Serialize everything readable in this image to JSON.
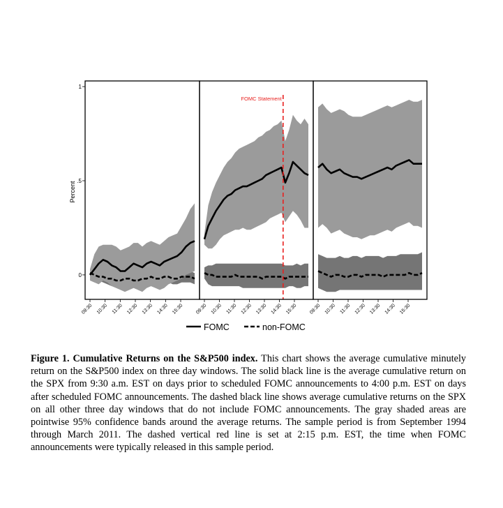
{
  "chart_data": {
    "type": "line",
    "ylabel": "Percent",
    "yticks": [
      {
        "value": 0,
        "label": "0"
      },
      {
        "value": 0.5,
        "label": ".5"
      },
      {
        "value": 1,
        "label": "1"
      }
    ],
    "ylim": [
      -0.13,
      1.03
    ],
    "panels": [
      {
        "xticks": [
          "09:30",
          "10:30",
          "11:30",
          "12:30",
          "13:30",
          "14:30",
          "15:30"
        ],
        "series": [
          {
            "name": "FOMC",
            "style": "solid",
            "values": [
              0.0,
              0.03,
              0.06,
              0.08,
              0.07,
              0.05,
              0.04,
              0.02,
              0.02,
              0.04,
              0.06,
              0.05,
              0.04,
              0.06,
              0.07,
              0.06,
              0.05,
              0.07,
              0.08,
              0.09,
              0.1,
              0.12,
              0.15,
              0.17,
              0.18
            ],
            "upper": [
              0.03,
              0.11,
              0.15,
              0.16,
              0.16,
              0.16,
              0.15,
              0.13,
              0.14,
              0.15,
              0.17,
              0.17,
              0.15,
              0.17,
              0.18,
              0.17,
              0.16,
              0.18,
              0.2,
              0.21,
              0.22,
              0.26,
              0.3,
              0.35,
              0.38
            ],
            "lower": [
              -0.03,
              -0.04,
              -0.05,
              -0.03,
              -0.04,
              -0.06,
              -0.07,
              -0.08,
              -0.09,
              -0.08,
              -0.07,
              -0.08,
              -0.09,
              -0.07,
              -0.06,
              -0.07,
              -0.08,
              -0.07,
              -0.05,
              -0.04,
              -0.03,
              -0.02,
              0.0,
              0.01,
              0.02
            ]
          },
          {
            "name": "non-FOMC",
            "style": "dashed",
            "values": [
              0.01,
              0.0,
              -0.01,
              -0.01,
              -0.02,
              -0.02,
              -0.03,
              -0.03,
              -0.02,
              -0.02,
              -0.03,
              -0.03,
              -0.02,
              -0.02,
              -0.01,
              -0.02,
              -0.02,
              -0.01,
              -0.01,
              -0.02,
              -0.02,
              -0.01,
              -0.01,
              -0.01,
              -0.02
            ],
            "upper": [
              0.03,
              0.02,
              0.01,
              0.01,
              0.0,
              -0.01,
              -0.01,
              -0.01,
              0.0,
              0.01,
              0.0,
              0.0,
              0.01,
              0.01,
              0.02,
              0.01,
              0.01,
              0.02,
              0.02,
              0.01,
              0.01,
              0.02,
              0.02,
              0.02,
              0.01
            ],
            "lower": [
              -0.01,
              -0.02,
              -0.03,
              -0.04,
              -0.05,
              -0.06,
              -0.06,
              -0.06,
              -0.06,
              -0.05,
              -0.06,
              -0.06,
              -0.05,
              -0.05,
              -0.04,
              -0.05,
              -0.05,
              -0.04,
              -0.04,
              -0.05,
              -0.05,
              -0.04,
              -0.04,
              -0.04,
              -0.05
            ]
          }
        ]
      },
      {
        "xticks": [
          "09:30",
          "10:30",
          "11:30",
          "12:30",
          "13:30",
          "14:30",
          "15:30"
        ],
        "event": {
          "x_fraction": 0.735,
          "label": "FOMC Statement"
        },
        "series": [
          {
            "name": "FOMC",
            "style": "solid",
            "values": [
              0.19,
              0.26,
              0.3,
              0.34,
              0.37,
              0.4,
              0.42,
              0.43,
              0.45,
              0.46,
              0.47,
              0.47,
              0.48,
              0.49,
              0.5,
              0.51,
              0.53,
              0.54,
              0.55,
              0.56,
              0.57,
              0.49,
              0.54,
              0.6,
              0.58,
              0.56,
              0.54,
              0.53
            ],
            "upper": [
              0.22,
              0.37,
              0.44,
              0.49,
              0.53,
              0.57,
              0.6,
              0.62,
              0.65,
              0.67,
              0.68,
              0.69,
              0.7,
              0.71,
              0.73,
              0.74,
              0.76,
              0.77,
              0.79,
              0.8,
              0.82,
              0.71,
              0.77,
              0.85,
              0.82,
              0.8,
              0.83,
              0.8
            ],
            "lower": [
              0.16,
              0.14,
              0.14,
              0.16,
              0.19,
              0.21,
              0.22,
              0.23,
              0.24,
              0.24,
              0.25,
              0.24,
              0.24,
              0.25,
              0.26,
              0.27,
              0.28,
              0.3,
              0.31,
              0.32,
              0.33,
              0.28,
              0.31,
              0.34,
              0.32,
              0.29,
              0.25,
              0.25
            ]
          },
          {
            "name": "non-FOMC",
            "style": "dashed",
            "values": [
              0.01,
              0.0,
              0.0,
              -0.01,
              -0.01,
              -0.01,
              -0.01,
              -0.01,
              0.0,
              -0.01,
              -0.01,
              -0.01,
              -0.01,
              -0.01,
              -0.01,
              -0.02,
              -0.01,
              -0.01,
              -0.01,
              -0.01,
              -0.01,
              -0.02,
              -0.01,
              -0.01,
              -0.01,
              -0.01,
              -0.01,
              -0.01
            ],
            "upper": [
              0.04,
              0.05,
              0.05,
              0.06,
              0.06,
              0.06,
              0.06,
              0.06,
              0.06,
              0.06,
              0.06,
              0.06,
              0.06,
              0.06,
              0.06,
              0.06,
              0.06,
              0.06,
              0.06,
              0.06,
              0.06,
              0.05,
              0.05,
              0.05,
              0.06,
              0.05,
              0.06,
              0.06
            ],
            "lower": [
              -0.02,
              -0.05,
              -0.06,
              -0.06,
              -0.06,
              -0.06,
              -0.06,
              -0.06,
              -0.06,
              -0.06,
              -0.07,
              -0.07,
              -0.07,
              -0.07,
              -0.07,
              -0.07,
              -0.07,
              -0.07,
              -0.07,
              -0.07,
              -0.07,
              -0.07,
              -0.06,
              -0.06,
              -0.07,
              -0.07,
              -0.06,
              -0.06
            ]
          }
        ]
      },
      {
        "xticks": [
          "09:30",
          "10:30",
          "11:30",
          "12:30",
          "13:30",
          "14:30",
          "15:30"
        ],
        "series": [
          {
            "name": "FOMC",
            "style": "solid",
            "values": [
              0.57,
              0.59,
              0.56,
              0.54,
              0.55,
              0.56,
              0.54,
              0.53,
              0.52,
              0.52,
              0.51,
              0.52,
              0.53,
              0.54,
              0.55,
              0.56,
              0.57,
              0.56,
              0.58,
              0.59,
              0.6,
              0.61,
              0.59,
              0.59,
              0.59
            ],
            "upper": [
              0.89,
              0.91,
              0.88,
              0.86,
              0.87,
              0.88,
              0.87,
              0.85,
              0.84,
              0.84,
              0.84,
              0.85,
              0.86,
              0.87,
              0.88,
              0.89,
              0.9,
              0.89,
              0.9,
              0.91,
              0.92,
              0.93,
              0.92,
              0.92,
              0.93
            ],
            "lower": [
              0.25,
              0.27,
              0.25,
              0.22,
              0.23,
              0.24,
              0.22,
              0.21,
              0.2,
              0.2,
              0.19,
              0.2,
              0.21,
              0.21,
              0.22,
              0.23,
              0.24,
              0.23,
              0.25,
              0.26,
              0.27,
              0.28,
              0.26,
              0.26,
              0.25
            ]
          },
          {
            "name": "non-FOMC",
            "style": "dashed",
            "values": [
              0.02,
              0.01,
              0.0,
              -0.01,
              0.0,
              0.0,
              -0.01,
              -0.01,
              0.0,
              0.0,
              -0.01,
              0.0,
              0.0,
              0.0,
              0.0,
              -0.01,
              0.0,
              0.0,
              0.0,
              0.0,
              0.0,
              0.01,
              0.0,
              0.0,
              0.01
            ],
            "upper": [
              0.11,
              0.1,
              0.09,
              0.09,
              0.09,
              0.1,
              0.09,
              0.09,
              0.1,
              0.1,
              0.09,
              0.1,
              0.1,
              0.1,
              0.1,
              0.09,
              0.1,
              0.1,
              0.1,
              0.11,
              0.11,
              0.11,
              0.11,
              0.11,
              0.12
            ],
            "lower": [
              -0.07,
              -0.08,
              -0.09,
              -0.09,
              -0.09,
              -0.08,
              -0.08,
              -0.08,
              -0.08,
              -0.08,
              -0.08,
              -0.08,
              -0.08,
              -0.08,
              -0.08,
              -0.08,
              -0.08,
              -0.08,
              -0.08,
              -0.08,
              -0.08,
              -0.08,
              -0.08,
              -0.08,
              -0.08
            ]
          }
        ]
      }
    ],
    "legend": {
      "placement": "bottom",
      "entries": [
        {
          "name": "FOMC",
          "style": "solid"
        },
        {
          "name": "non-FOMC",
          "style": "dashed"
        }
      ]
    },
    "colors": {
      "fomc_band": "#9b9b9b",
      "nonfomc_band": "#6e6e6e",
      "line": "#000000",
      "event": "#e8211f"
    }
  },
  "caption": {
    "label": "Figure 1. Cumulative Returns on the S&P500 index.",
    "text": "This chart shows the average cumulative minutely return on the S&P500 index on three day windows. The solid black line is the average cumulative return on the SPX from 9:30 a.m. EST on days prior to scheduled FOMC announcements to 4:00 p.m. EST on days after scheduled FOMC announcements. The dashed black line shows average cumulative returns on the SPX on all other three day windows that do not include FOMC announcements. The gray shaded areas are pointwise 95% confidence bands around the average returns. The sample period is from September 1994 through March 2011. The dashed vertical red line is set at 2:15 p.m. EST, the time when FOMC announcements were typically released in this sample period."
  }
}
